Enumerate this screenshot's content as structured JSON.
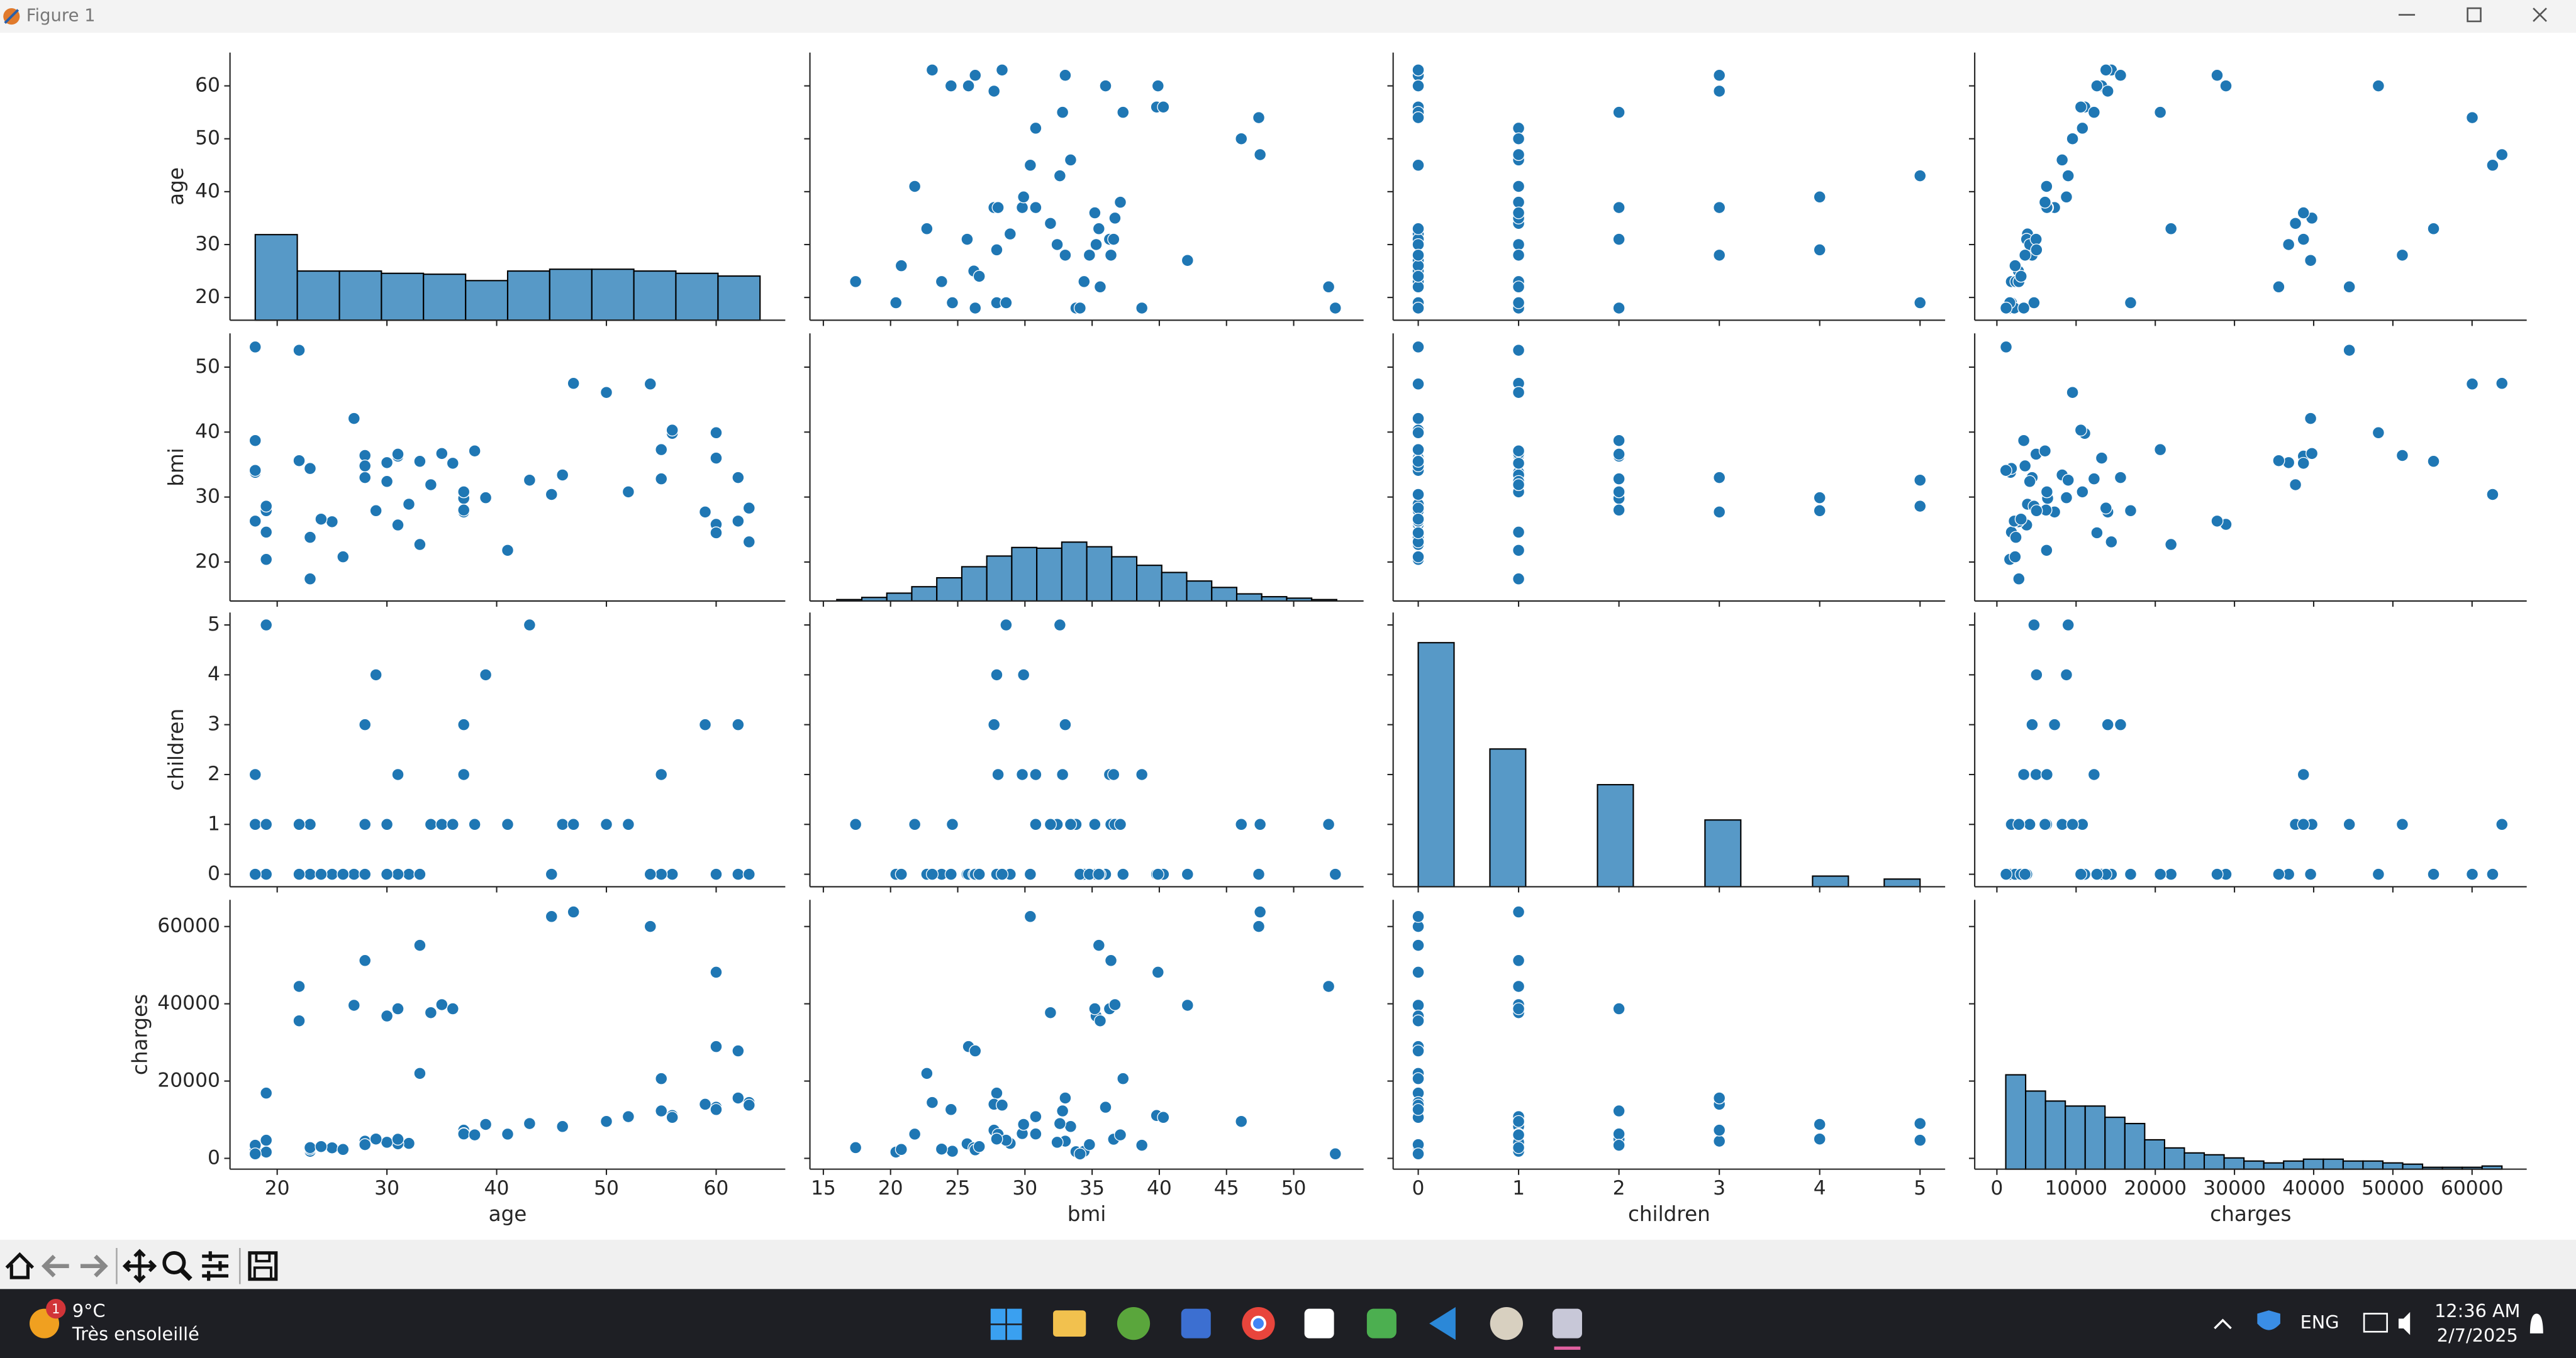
{
  "window": {
    "title": "Figure 1"
  },
  "chart_data": {
    "type": "pairplot",
    "color": "#1f77b4",
    "variables": [
      "age",
      "bmi",
      "children",
      "charges"
    ],
    "axes": {
      "age": {
        "lim": [
          15.7,
          66.3
        ],
        "xticks": [
          20,
          30,
          40,
          50,
          60
        ],
        "yticks": [
          20,
          30,
          40,
          50,
          60
        ]
      },
      "bmi": {
        "lim": [
          14,
          55.2
        ],
        "xticks": [
          15,
          20,
          25,
          30,
          35,
          40,
          45,
          50
        ],
        "yticks": [
          20,
          30,
          40,
          50
        ]
      },
      "children": {
        "lim": [
          -0.25,
          5.25
        ],
        "xticks": [
          0,
          1,
          2,
          3,
          4,
          5
        ],
        "yticks": [
          0,
          1,
          2,
          3,
          4,
          5
        ]
      },
      "charges": {
        "lim": [
          -2800,
          66900
        ],
        "xticks": [
          0,
          10000,
          20000,
          30000,
          40000,
          50000,
          60000
        ],
        "yticks": [
          0,
          20000,
          40000,
          60000
        ]
      }
    },
    "histograms": {
      "age": {
        "bins": [
          18,
          21.83,
          25.67,
          29.5,
          33.33,
          37.17,
          41,
          44.83,
          48.67,
          52.5,
          56.33,
          60.17,
          64
        ],
        "counts": [
          188,
          108,
          108,
          103,
          101,
          87,
          108,
          112,
          112,
          108,
          103,
          97
        ],
        "ylim": [
          0,
          588
        ]
      },
      "bmi": {
        "bins": [
          16,
          17.86,
          19.72,
          21.58,
          23.44,
          25.3,
          27.16,
          29.02,
          30.88,
          32.74,
          34.6,
          36.46,
          38.32,
          40.18,
          42.04,
          43.9,
          45.76,
          47.62,
          49.48,
          51.34,
          53.2
        ],
        "counts": [
          4,
          10,
          22,
          40,
          65,
          96,
          126,
          150,
          148,
          165,
          152,
          124,
          100,
          80,
          56,
          38,
          20,
          12,
          8,
          4
        ],
        "ylim": [
          0,
          750
        ]
      },
      "children": {
        "bins": [
          0,
          0.357,
          0.714,
          1.071,
          1.429,
          1.786,
          2.143,
          2.5,
          2.857,
          3.214,
          3.571,
          3.929,
          4.286,
          4.643,
          5
        ],
        "counts": [
          574,
          0,
          324,
          0,
          0,
          240,
          0,
          0,
          157,
          0,
          0,
          25,
          0,
          18
        ],
        "ylim": [
          0,
          645
        ]
      },
      "charges": {
        "bins": [
          1122,
          3628,
          6134,
          8640,
          11146,
          13652,
          16158,
          18664,
          21170,
          23676,
          26182,
          28688,
          31194,
          33700,
          36206,
          38712,
          41218,
          43724,
          46230,
          48736,
          51242,
          53748,
          56254,
          58760,
          61266,
          63772
        ],
        "counts": [
          151,
          125,
          109,
          101,
          101,
          83,
          73,
          47,
          34,
          26,
          23,
          18,
          13,
          10,
          13,
          16,
          16,
          13,
          13,
          10,
          8,
          3,
          3,
          3,
          5
        ],
        "ylim": [
          0,
          431
        ]
      }
    },
    "data": {
      "age": [
        19,
        18,
        28,
        33,
        32,
        31,
        46,
        37,
        37,
        60,
        25,
        62,
        23,
        56,
        27,
        19,
        52,
        23,
        56,
        30,
        60,
        30,
        18,
        34,
        37,
        59,
        63,
        55,
        23,
        31,
        22,
        18,
        19,
        63,
        28,
        19,
        62,
        26,
        35,
        60,
        24,
        31,
        41,
        37,
        38,
        55,
        18,
        28,
        60,
        36,
        18,
        47,
        54,
        45,
        33,
        22,
        50,
        39,
        43,
        29
      ],
      "bmi": [
        27.9,
        33.8,
        33.0,
        22.7,
        28.9,
        25.7,
        33.4,
        27.7,
        29.8,
        25.8,
        26.2,
        26.3,
        34.4,
        39.8,
        42.1,
        24.6,
        30.8,
        23.8,
        40.3,
        35.3,
        36.0,
        32.4,
        34.1,
        31.9,
        28.0,
        27.7,
        23.1,
        32.8,
        17.4,
        36.3,
        35.6,
        26.3,
        28.6,
        28.3,
        36.4,
        20.4,
        33.0,
        20.8,
        36.7,
        39.9,
        26.6,
        36.6,
        21.8,
        30.8,
        37.1,
        37.3,
        38.7,
        34.8,
        24.5,
        35.2,
        53.1,
        47.5,
        47.4,
        30.4,
        35.5,
        52.6,
        46.1,
        29.9,
        32.6,
        27.9
      ],
      "children": [
        0,
        1,
        3,
        0,
        0,
        0,
        1,
        3,
        2,
        0,
        0,
        0,
        0,
        0,
        0,
        1,
        1,
        0,
        0,
        0,
        0,
        1,
        0,
        1,
        2,
        3,
        0,
        2,
        1,
        2,
        0,
        0,
        5,
        0,
        1,
        0,
        3,
        0,
        1,
        0,
        0,
        2,
        1,
        2,
        1,
        0,
        2,
        0,
        0,
        1,
        0,
        1,
        0,
        0,
        0,
        1,
        1,
        4,
        5,
        4
      ],
      "charges": [
        16885,
        1726,
        4449,
        21984,
        3867,
        3757,
        8241,
        7282,
        6406,
        28923,
        2721,
        27809,
        1827,
        11091,
        39612,
        1837,
        10797,
        2395,
        10602,
        36837,
        13229,
        4150,
        1137,
        37702,
        6204,
        14001,
        14451,
        12269,
        2775,
        38711,
        35586,
        2198,
        4687,
        13770,
        51195,
        1625,
        15612,
        2302,
        39774,
        48173,
        3046,
        4949,
        6272,
        6313,
        6079,
        20630,
        3393,
        3556,
        12630,
        38709,
        1164,
        63770,
        60021,
        62593,
        55135,
        44501,
        9549,
        8782,
        9000,
        5000
      ]
    }
  },
  "taskbar": {
    "weather": {
      "badge": "1",
      "temp": "9°C",
      "text": "Très ensoleillé"
    },
    "lang": "ENG",
    "time": "12:36 AM",
    "date": "2/7/2025"
  }
}
